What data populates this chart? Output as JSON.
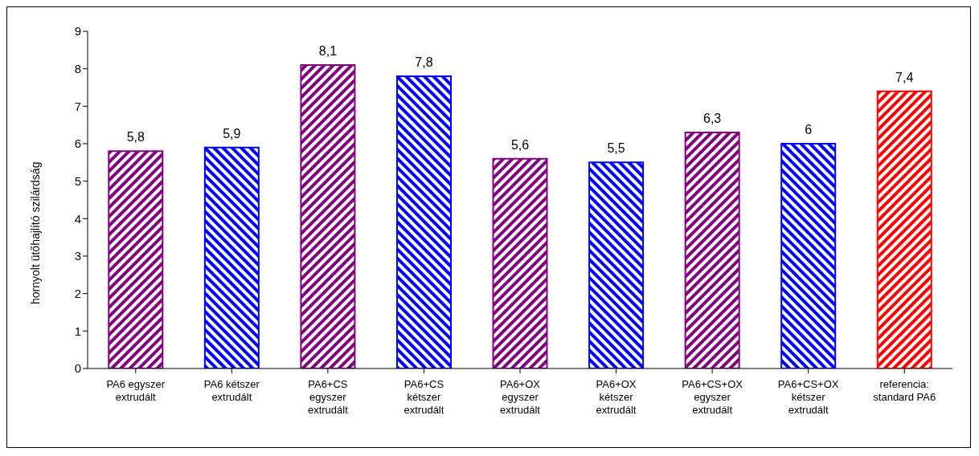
{
  "chart_data": {
    "type": "bar",
    "ylabel": "hornyolt ütőhajlító szilárdság",
    "categories": [
      "PA6 egyszer extrudált",
      "PA6 kétszer extrudált",
      "PA6+CS egyszer extrudált",
      "PA6+CS kétszer extrudált",
      "PA6+OX egyszer extrudált",
      "PA6+OX kétszer extrudált",
      "PA6+CS+OX egyszer extrudált",
      "PA6+CS+OX kétszer extrudált",
      "referencia: standard PA6"
    ],
    "values": [
      5.8,
      5.9,
      8.1,
      7.8,
      5.6,
      5.5,
      6.3,
      6,
      7.4
    ],
    "value_labels": [
      "5,8",
      "5,9",
      "8,1",
      "7,8",
      "5,6",
      "5,5",
      "6,3",
      "6",
      "7,4"
    ],
    "colors": [
      "#800080",
      "#0000ff",
      "#800080",
      "#0000ff",
      "#800080",
      "#0000ff",
      "#800080",
      "#0000ff",
      "#ff0000"
    ],
    "ylim": [
      0,
      9
    ],
    "yticks": [
      0,
      1,
      2,
      3,
      4,
      5,
      6,
      7,
      8,
      9
    ],
    "grid": false,
    "legend": false
  }
}
